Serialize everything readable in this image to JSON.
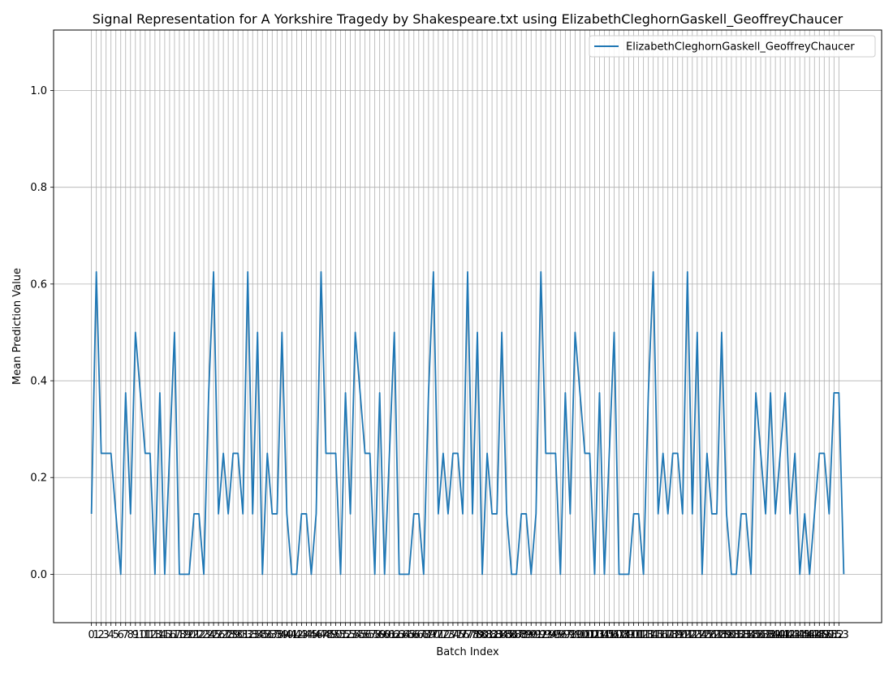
{
  "chart_data": {
    "type": "line",
    "title": "Signal Representation for A Yorkshire Tragedy by Shakespeare.txt using ElizabethCleghornGaskell_GeoffreyChaucer",
    "xlabel": "Batch Index",
    "ylabel": "Mean Prediction Value",
    "xlim": [
      -7.75,
      161.75
    ],
    "ylim": [
      -0.1,
      1.125
    ],
    "yticks": [
      0.0,
      0.2,
      0.4,
      0.6,
      0.8,
      1.0
    ],
    "ytick_labels": [
      "0.0",
      "0.2",
      "0.4",
      "0.6",
      "0.8",
      "1.0"
    ],
    "xtick_start": 0,
    "xtick_end": 153,
    "grid": true,
    "legend_position": "upper right",
    "series": [
      {
        "name": "ElizabethCleghornGaskell_GeoffreyChaucer",
        "color": "#1f77b4",
        "values": [
          0.125,
          0.625,
          0.25,
          0.25,
          0.25,
          0.125,
          0.0,
          0.375,
          0.125,
          0.5,
          0.375,
          0.25,
          0.25,
          0.0,
          0.375,
          0.0,
          0.25,
          0.5,
          0.0,
          0.0,
          0.0,
          0.125,
          0.125,
          0.0,
          0.375,
          0.625,
          0.125,
          0.25,
          0.125,
          0.25,
          0.25,
          0.125,
          0.625,
          0.125,
          0.5,
          0.0,
          0.25,
          0.125,
          0.125,
          0.5,
          0.125,
          0.0,
          0.0,
          0.125,
          0.125,
          0.0,
          0.125,
          0.625,
          0.25,
          0.25,
          0.25,
          0.0,
          0.375,
          0.125,
          0.5,
          0.375,
          0.25,
          0.25,
          0.0,
          0.375,
          0.0,
          0.25,
          0.5,
          0.0,
          0.0,
          0.0,
          0.125,
          0.125,
          0.0,
          0.375,
          0.625,
          0.125,
          0.25,
          0.125,
          0.25,
          0.25,
          0.125,
          0.625,
          0.125,
          0.5,
          0.0,
          0.25,
          0.125,
          0.125,
          0.5,
          0.125,
          0.0,
          0.0,
          0.125,
          0.125,
          0.0,
          0.125,
          0.625,
          0.25,
          0.25,
          0.25,
          0.0,
          0.375,
          0.125,
          0.5,
          0.375,
          0.25,
          0.25,
          0.0,
          0.375,
          0.0,
          0.25,
          0.5,
          0.0,
          0.0,
          0.0,
          0.125,
          0.125,
          0.0,
          0.375,
          0.625,
          0.125,
          0.25,
          0.125,
          0.25,
          0.25,
          0.125,
          0.625,
          0.125,
          0.5,
          0.0,
          0.25,
          0.125,
          0.125,
          0.5,
          0.125,
          0.0,
          0.0,
          0.125,
          0.125,
          0.0,
          0.375,
          0.25,
          0.125,
          0.375,
          0.125,
          0.25,
          0.375,
          0.125,
          0.25,
          0.0,
          0.125,
          0.0,
          0.125,
          0.25,
          0.25,
          0.125,
          0.375,
          0.375,
          0.0
        ]
      }
    ]
  }
}
